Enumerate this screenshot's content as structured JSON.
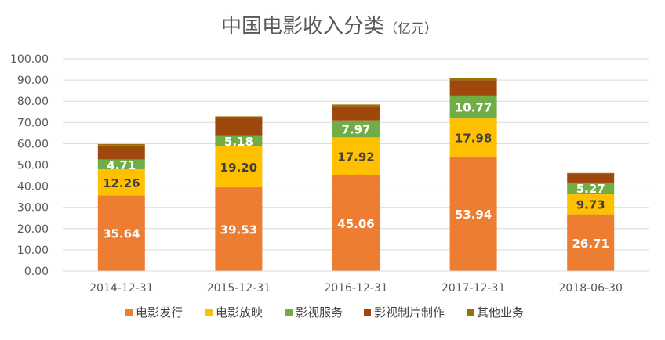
{
  "chart_data": {
    "type": "bar",
    "stacked": true,
    "title": "中国电影收入分类",
    "title_unit": "（亿元）",
    "categories": [
      "2014-12-31",
      "2015-12-31",
      "2016-12-31",
      "2017-12-31",
      "2018-06-30"
    ],
    "ylim": [
      0,
      100
    ],
    "yticks": [
      "0.00",
      "10.00",
      "20.00",
      "30.00",
      "40.00",
      "50.00",
      "60.00",
      "70.00",
      "80.00",
      "90.00",
      "100.00"
    ],
    "grid": true,
    "legend_position": "bottom",
    "series": [
      {
        "name": "电影发行",
        "color": "#ED7D31",
        "label_color": "#ffffff",
        "values": [
          35.64,
          39.53,
          45.06,
          53.94,
          26.71
        ],
        "labels": [
          "35.64",
          "39.53",
          "45.06",
          "53.94",
          "26.71"
        ]
      },
      {
        "name": "电影放映",
        "color": "#FFC000",
        "label_color": "#404040",
        "values": [
          12.26,
          19.2,
          17.92,
          17.98,
          9.73
        ],
        "labels": [
          "12.26",
          "19.20",
          "17.92",
          "17.98",
          "9.73"
        ]
      },
      {
        "name": "影视服务",
        "color": "#70AD47",
        "label_color": "#ffffff",
        "values": [
          4.71,
          5.18,
          7.97,
          10.77,
          5.27
        ],
        "labels": [
          "4.71",
          "5.18",
          "7.97",
          "10.77",
          "5.27"
        ]
      },
      {
        "name": "影视制片制作",
        "color": "#9E480E",
        "label_color": "#ffffff",
        "values": [
          6.5,
          8.6,
          6.8,
          7.2,
          4.2
        ],
        "labels": [
          "",
          "",
          "",
          "",
          ""
        ]
      },
      {
        "name": "其他业务",
        "color": "#997300",
        "label_color": "#ffffff",
        "values": [
          0.7,
          0.4,
          0.7,
          0.9,
          0.3
        ],
        "labels": [
          "",
          "",
          "",
          "",
          ""
        ]
      }
    ]
  }
}
